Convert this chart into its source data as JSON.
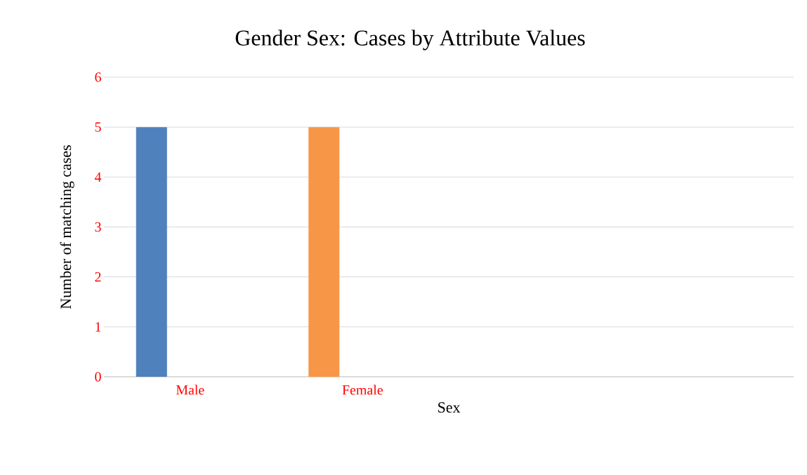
{
  "chart_data": {
    "type": "bar",
    "title": "Gender Sex:  Cases by Attribute Values",
    "xlabel": "Sex",
    "ylabel": "Number of matching cases",
    "categories": [
      "Male",
      "Female",
      null,
      null
    ],
    "values": [
      5,
      5,
      null,
      null
    ],
    "colors": [
      "#4f81bd",
      "#f79646",
      null,
      null
    ],
    "ylim": [
      0,
      6
    ],
    "yticks": [
      0,
      1,
      2,
      3,
      4,
      5,
      6
    ],
    "grid": true
  }
}
